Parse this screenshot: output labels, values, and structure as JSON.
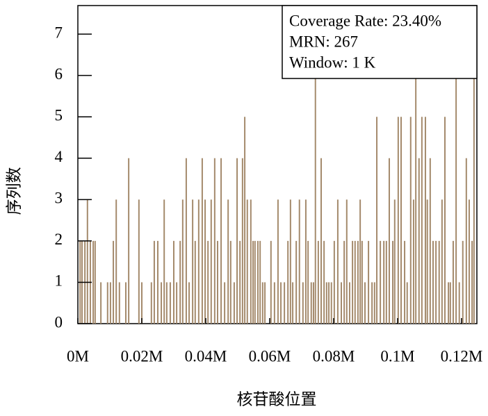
{
  "chart_data": {
    "type": "bar",
    "xlabel": "核苷酸位置",
    "ylabel": "序列数",
    "annotations": [
      "Coverage Rate: 23.40%",
      "MRN: 267",
      "Window: 1 K"
    ],
    "color": "#a48a6c",
    "x": [
      0.0007,
      0.0013,
      0.0022,
      0.003,
      0.0039,
      0.0048,
      0.0054,
      0.0072,
      0.0093,
      0.0102,
      0.0111,
      0.012,
      0.013,
      0.015,
      0.0159,
      0.0191,
      0.02,
      0.023,
      0.0239,
      0.025,
      0.0261,
      0.027,
      0.0278,
      0.0289,
      0.03,
      0.0309,
      0.032,
      0.0328,
      0.0339,
      0.0348,
      0.0359,
      0.0367,
      0.0378,
      0.0389,
      0.0398,
      0.0407,
      0.0417,
      0.0428,
      0.0437,
      0.0448,
      0.0459,
      0.047,
      0.0478,
      0.0489,
      0.0498,
      0.0507,
      0.0515,
      0.0522,
      0.053,
      0.0541,
      0.0548,
      0.0554,
      0.0563,
      0.057,
      0.0578,
      0.0585,
      0.0604,
      0.0615,
      0.0626,
      0.0635,
      0.0646,
      0.0657,
      0.0665,
      0.0672,
      0.0683,
      0.0693,
      0.0704,
      0.0713,
      0.072,
      0.073,
      0.0737,
      0.0743,
      0.0752,
      0.0761,
      0.077,
      0.0778,
      0.0785,
      0.0793,
      0.0802,
      0.0813,
      0.0824,
      0.0833,
      0.0841,
      0.085,
      0.0859,
      0.0867,
      0.0876,
      0.0883,
      0.0889,
      0.0898,
      0.0909,
      0.092,
      0.0928,
      0.0935,
      0.0946,
      0.0957,
      0.0965,
      0.0974,
      0.0985,
      0.0991,
      0.1002,
      0.1011,
      0.1022,
      0.103,
      0.1041,
      0.105,
      0.1057,
      0.1067,
      0.1076,
      0.1087,
      0.1093,
      0.1102,
      0.1111,
      0.112,
      0.113,
      0.1139,
      0.1148,
      0.1159,
      0.1165,
      0.1174,
      0.1183,
      0.1193,
      0.1204,
      0.1215,
      0.1224,
      0.1233,
      0.1239
    ],
    "values": [
      2,
      2,
      2,
      3,
      2,
      2,
      2,
      1,
      1,
      1,
      2,
      3,
      1,
      1,
      4,
      3,
      1,
      1,
      2,
      2,
      1,
      3,
      1,
      1,
      2,
      1,
      2,
      3,
      4,
      1,
      3,
      2,
      3,
      4,
      3,
      2,
      3,
      4,
      2,
      4,
      1,
      3,
      2,
      1,
      4,
      2,
      4,
      5,
      3,
      3,
      2,
      2,
      2,
      2,
      1,
      1,
      2,
      1,
      3,
      1,
      1,
      2,
      3,
      1,
      2,
      3,
      1,
      3,
      2,
      1,
      1,
      6,
      2,
      4,
      2,
      1,
      1,
      1,
      2,
      3,
      1,
      2,
      3,
      1,
      2,
      2,
      2,
      3,
      2,
      1,
      2,
      1,
      1,
      5,
      2,
      2,
      2,
      4,
      2,
      3,
      5,
      5,
      2,
      1,
      5,
      3,
      7,
      4,
      5,
      5,
      3,
      4,
      2,
      2,
      2,
      3,
      5,
      1,
      1,
      2,
      6,
      1,
      2,
      4,
      3,
      2,
      7
    ],
    "xlim": [
      0,
      0.1248
    ],
    "xticks": [
      {
        "value": 0,
        "label": "0M"
      },
      {
        "value": 0.02,
        "label": "0.02M"
      },
      {
        "value": 0.04,
        "label": "0.04M"
      },
      {
        "value": 0.06,
        "label": "0.06M"
      },
      {
        "value": 0.08,
        "label": "0.08M"
      },
      {
        "value": 0.1,
        "label": "0.1M"
      },
      {
        "value": 0.12,
        "label": "0.12M"
      }
    ],
    "ylim": [
      0,
      7.69
    ],
    "yticks": [
      0,
      1,
      2,
      3,
      4,
      5,
      6,
      7
    ]
  }
}
